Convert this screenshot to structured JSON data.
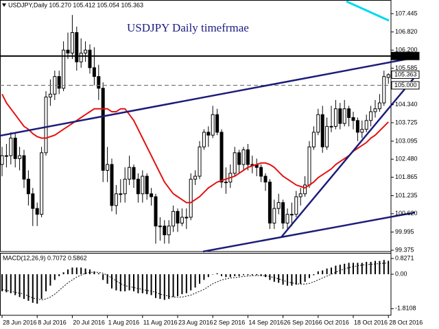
{
  "chart_data": [
    {
      "type": "candlestick",
      "header": "USDJPY,Daily  105.270 105.412 105.054 105.363",
      "title": "USDJPY Daily timefrmae",
      "categories": [
        "28 Jun 2016",
        null,
        null,
        null,
        null,
        null,
        null,
        null,
        "8 Jul 2016",
        null,
        null,
        null,
        null,
        null,
        null,
        null,
        "20 Jul 2016",
        null,
        null,
        null,
        null,
        null,
        null,
        null,
        "1 Aug 2016",
        null,
        null,
        null,
        null,
        null,
        null,
        null,
        "11 Aug 2016",
        null,
        null,
        null,
        null,
        null,
        null,
        null,
        "23 Aug 2016",
        null,
        null,
        null,
        null,
        null,
        null,
        null,
        "2 Sep 2016",
        null,
        null,
        null,
        null,
        null,
        null,
        null,
        "14 Sep 2016",
        null,
        null,
        null,
        null,
        null,
        null,
        null,
        "26 Sep 2016",
        null,
        null,
        null,
        null,
        null,
        null,
        null,
        "6 Oct 2016",
        null,
        null,
        null,
        null,
        null,
        null,
        null,
        "18 Oct 2016",
        null,
        null,
        null,
        null,
        null,
        null,
        null,
        "28 Oct 2016"
      ],
      "open": [
        102.3,
        102.6,
        102.6,
        103.2,
        102.5,
        102.6,
        101.8,
        101.3,
        100.8,
        100.6,
        102.7,
        104.6,
        104.7,
        105.3,
        104.9,
        106.2,
        106.1,
        106.8,
        105.8,
        106.1,
        106.2,
        105.6,
        105.3,
        104.9,
        102.1,
        102.3,
        100.9,
        101.3,
        101.3,
        101.8,
        102.2,
        101.8,
        101.3,
        101.9,
        101.3,
        101.2,
        100.2,
        100.2,
        99.9,
        100.2,
        100.7,
        100.3,
        100.5,
        100.5,
        101.8,
        101.9,
        102.9,
        103.4,
        103.3,
        104.0,
        103.4,
        101.7,
        101.7,
        102.0,
        102.7,
        102.3,
        102.8,
        102.3,
        102.3,
        102.2,
        101.9,
        101.7,
        100.3,
        100.8,
        101.0,
        100.3,
        100.6,
        100.6,
        101.2,
        101.3,
        101.6,
        102.9,
        103.4,
        104.0,
        102.9,
        103.6,
        103.6,
        104.2,
        103.7,
        104.2,
        103.9,
        103.8,
        103.4,
        103.5,
        103.8,
        104.1,
        104.2,
        104.4,
        105.27
      ],
      "high": [
        102.9,
        103.0,
        103.4,
        103.4,
        102.9,
        102.8,
        102.1,
        101.5,
        101.0,
        102.9,
        104.8,
        105.2,
        105.5,
        105.5,
        106.5,
        106.8,
        107.4,
        107.0,
        106.6,
        106.5,
        106.4,
        106.3,
        105.7,
        105.1,
        102.9,
        102.5,
        101.6,
        101.8,
        102.2,
        102.6,
        102.3,
        102.0,
        102.1,
        102.0,
        101.5,
        101.3,
        100.5,
        100.4,
        100.4,
        100.9,
        100.8,
        100.8,
        100.8,
        102.0,
        102.1,
        103.1,
        103.5,
        103.6,
        104.3,
        104.2,
        103.5,
        102.2,
        102.3,
        102.9,
        102.8,
        102.9,
        103.0,
        102.6,
        102.5,
        102.3,
        102.0,
        101.8,
        101.1,
        101.3,
        101.1,
        100.8,
        101.0,
        101.4,
        101.5,
        101.9,
        103.1,
        103.6,
        104.2,
        104.3,
        103.9,
        104.3,
        104.5,
        104.4,
        104.5,
        104.3,
        104.1,
        103.9,
        103.8,
        104.0,
        104.3,
        104.5,
        104.7,
        105.5,
        105.412
      ],
      "low": [
        101.9,
        102.2,
        102.3,
        102.2,
        102.1,
        101.5,
        100.9,
        100.2,
        100.2,
        100.5,
        102.6,
        104.3,
        104.5,
        104.7,
        104.8,
        105.9,
        105.9,
        105.5,
        105.6,
        105.8,
        105.4,
        105.0,
        104.5,
        101.7,
        101.7,
        100.7,
        100.6,
        101.0,
        101.0,
        101.6,
        101.5,
        101.0,
        101.0,
        101.1,
        100.9,
        99.6,
        99.7,
        99.6,
        99.6,
        100.0,
        100.0,
        100.2,
        100.1,
        100.4,
        101.6,
        101.8,
        102.8,
        102.9,
        103.2,
        103.3,
        101.5,
        101.3,
        101.5,
        101.9,
        102.0,
        102.1,
        102.1,
        102.0,
        101.9,
        101.7,
        101.4,
        100.1,
        100.1,
        100.6,
        100.1,
        100.1,
        100.2,
        100.5,
        100.9,
        101.2,
        101.5,
        102.8,
        103.3,
        102.7,
        102.8,
        103.4,
        103.5,
        103.5,
        103.6,
        103.6,
        103.5,
        103.1,
        103.2,
        103.4,
        103.6,
        103.9,
        104.1,
        104.3,
        105.054
      ],
      "close": [
        102.6,
        102.6,
        103.2,
        102.5,
        102.6,
        101.8,
        101.3,
        100.8,
        100.6,
        102.7,
        104.6,
        104.7,
        105.3,
        104.9,
        106.2,
        106.1,
        106.8,
        105.8,
        106.1,
        106.2,
        105.6,
        105.3,
        104.9,
        102.1,
        102.3,
        100.9,
        101.3,
        101.3,
        101.8,
        102.2,
        101.8,
        101.3,
        101.9,
        101.3,
        101.2,
        100.2,
        100.2,
        99.9,
        100.2,
        100.7,
        100.3,
        100.5,
        100.5,
        101.8,
        101.9,
        102.9,
        103.4,
        103.3,
        104.0,
        103.4,
        101.7,
        101.7,
        102.0,
        102.7,
        102.3,
        102.8,
        102.3,
        102.3,
        102.2,
        101.9,
        101.7,
        100.3,
        100.8,
        101.0,
        100.3,
        100.6,
        100.6,
        101.2,
        101.3,
        101.6,
        102.9,
        103.4,
        104.0,
        102.9,
        103.6,
        103.6,
        104.2,
        103.7,
        104.2,
        103.9,
        103.8,
        103.4,
        103.5,
        103.8,
        104.1,
        104.2,
        104.4,
        105.3,
        105.363
      ],
      "color": "#000000",
      "up_fill": "#ffffff",
      "ma": {
        "color": "#e41010",
        "values": [
          104.7,
          104.4,
          104.2,
          104.0,
          103.8,
          103.6,
          103.5,
          103.35,
          103.25,
          103.2,
          103.2,
          103.25,
          103.3,
          103.4,
          103.5,
          103.6,
          103.7,
          103.8,
          103.9,
          104.0,
          104.1,
          104.2,
          104.2,
          104.2,
          104.2,
          104.1,
          104.1,
          104.2,
          104.2,
          104.0,
          103.8,
          103.5,
          103.2,
          102.9,
          102.6,
          102.3,
          102.0,
          101.7,
          101.5,
          101.3,
          101.2,
          101.1,
          101.0,
          101.0,
          101.1,
          101.2,
          101.35,
          101.5,
          101.6,
          101.7,
          101.75,
          101.8,
          101.85,
          101.9,
          102.0,
          102.1,
          102.2,
          102.25,
          102.3,
          102.35,
          102.35,
          102.3,
          102.2,
          102.05,
          101.9,
          101.8,
          101.7,
          101.6,
          101.55,
          101.5,
          101.6,
          101.7,
          101.85,
          101.95,
          102.05,
          102.15,
          102.3,
          102.4,
          102.5,
          102.6,
          102.75,
          102.85,
          102.95,
          103.05,
          103.2,
          103.3,
          103.45,
          103.6,
          103.75
        ]
      },
      "ylim": [
        99.33,
        107.91
      ],
      "yticks": [
        107.445,
        {
          "value": 106.82,
          "label": "106.820"
        },
        {
          "value": 106.2,
          "label": "106.200"
        },
        105.585,
        {
          "value": 104.34,
          "label": "104.340"
        },
        103.725,
        103.095,
        {
          "value": 102.48,
          "label": "102.480"
        },
        101.865,
        101.235,
        {
          "value": 100.62,
          "label": "100.620"
        },
        99.995,
        99.375
      ],
      "levels": [
        {
          "value": 106,
          "label": "106.000",
          "line": "solid",
          "fill": "#000000",
          "text_color": "#ffffff"
        },
        {
          "value": 105.363,
          "label": "105.363",
          "line": "none",
          "fill": "#ffffff",
          "text_color": "#000000"
        },
        {
          "value": 105,
          "label": "105.000",
          "line": "dashed",
          "fill": "#ffffff",
          "text_color": "#000000"
        }
      ]
    },
    {
      "type": "bar",
      "label": "MACD(12,26,9) 0.7072 0.5862",
      "color": "#000000",
      "values": [
        -0.9,
        -0.95,
        -1.0,
        -1.1,
        -1.2,
        -1.3,
        -1.4,
        -1.5,
        -1.55,
        -1.3,
        -0.9,
        -0.6,
        -0.3,
        -0.1,
        0.1,
        0.25,
        0.35,
        0.35,
        0.35,
        0.3,
        0.25,
        0.15,
        0.05,
        -0.3,
        -0.5,
        -0.75,
        -0.85,
        -0.9,
        -0.9,
        -0.85,
        -0.9,
        -1.0,
        -1.0,
        -1.05,
        -1.1,
        -1.25,
        -1.3,
        -1.35,
        -1.3,
        -1.2,
        -1.15,
        -1.05,
        -1.0,
        -0.85,
        -0.7,
        -0.5,
        -0.3,
        -0.15,
        0.0,
        0.05,
        -0.1,
        -0.15,
        -0.15,
        -0.1,
        -0.1,
        -0.05,
        -0.05,
        -0.05,
        -0.05,
        -0.1,
        -0.15,
        -0.3,
        -0.4,
        -0.45,
        -0.55,
        -0.6,
        -0.6,
        -0.55,
        -0.5,
        -0.4,
        -0.2,
        -0.05,
        0.15,
        0.2,
        0.3,
        0.35,
        0.45,
        0.5,
        0.55,
        0.6,
        0.6,
        0.6,
        0.6,
        0.65,
        0.65,
        0.7,
        0.7,
        0.75,
        0.7072
      ],
      "signal": {
        "color": "#000000",
        "values": [
          -0.8,
          -0.85,
          -0.9,
          -0.95,
          -1.0,
          -1.05,
          -1.15,
          -1.25,
          -1.3,
          -1.35,
          -1.3,
          -1.2,
          -1.05,
          -0.85,
          -0.65,
          -0.45,
          -0.3,
          -0.15,
          -0.05,
          0.05,
          0.1,
          0.1,
          0.1,
          0.05,
          -0.05,
          -0.2,
          -0.35,
          -0.5,
          -0.6,
          -0.65,
          -0.7,
          -0.75,
          -0.8,
          -0.85,
          -0.9,
          -0.95,
          -1.05,
          -1.1,
          -1.15,
          -1.2,
          -1.2,
          -1.2,
          -1.15,
          -1.1,
          -1.0,
          -0.9,
          -0.8,
          -0.65,
          -0.5,
          -0.4,
          -0.3,
          -0.25,
          -0.2,
          -0.18,
          -0.15,
          -0.12,
          -0.1,
          -0.08,
          -0.07,
          -0.07,
          -0.08,
          -0.12,
          -0.18,
          -0.25,
          -0.32,
          -0.4,
          -0.45,
          -0.5,
          -0.52,
          -0.52,
          -0.48,
          -0.4,
          -0.3,
          -0.2,
          -0.1,
          0.0,
          0.1,
          0.2,
          0.28,
          0.35,
          0.4,
          0.45,
          0.48,
          0.5,
          0.52,
          0.54,
          0.56,
          0.58,
          0.5862
        ]
      },
      "ylim": [
        -2.16,
        1.12
      ],
      "yticks": [
        0.8271,
        {
          "value": 0,
          "label": "0.00"
        },
        -1.8108
      ]
    }
  ]
}
